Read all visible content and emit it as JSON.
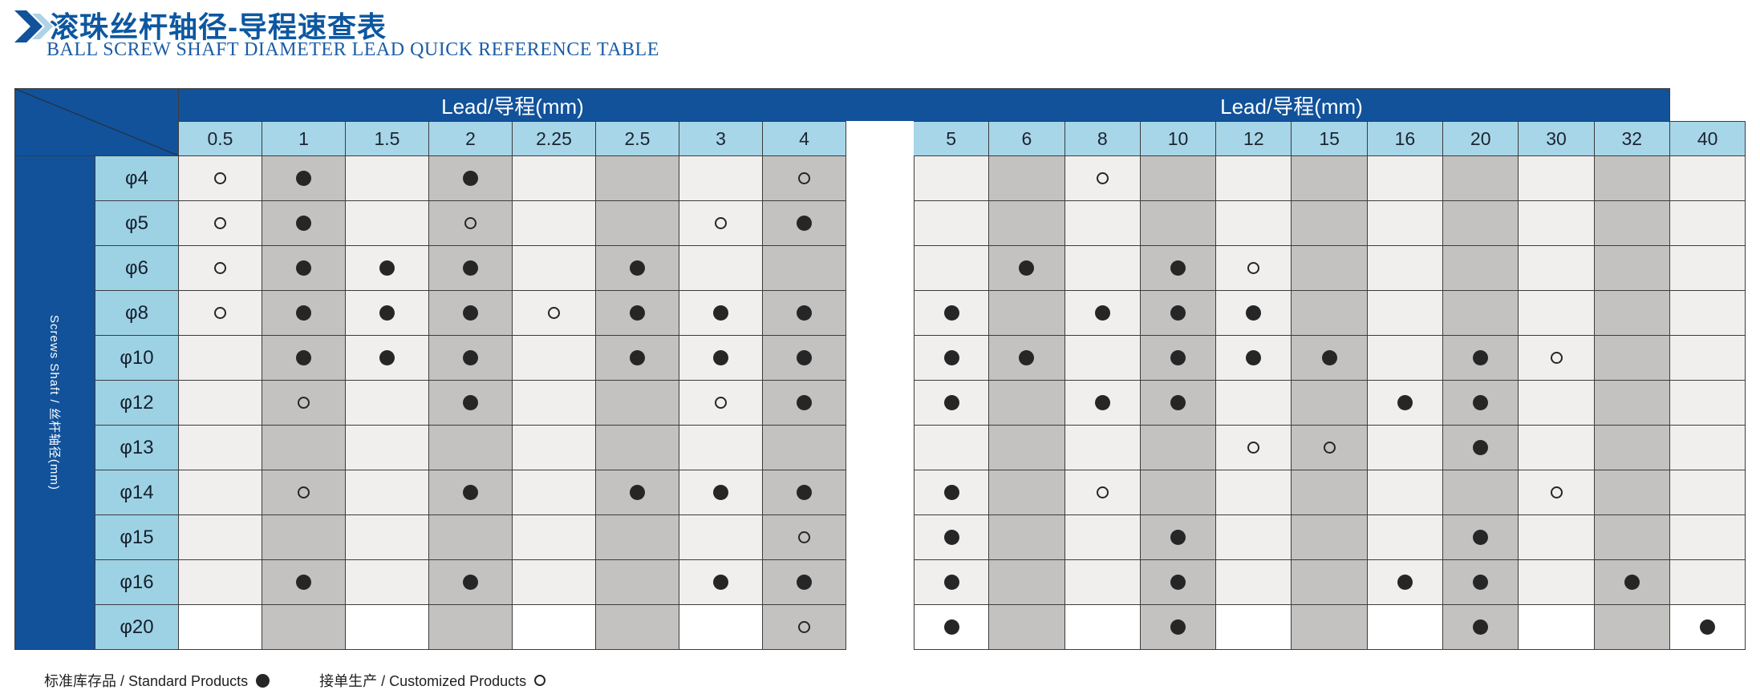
{
  "page": {
    "title_cn": "滚珠丝杆轴径-导程速查表",
    "title_en": "BALL SCREW SHAFT DIAMETER LEAD QUICK REFERENCE TABLE"
  },
  "table": {
    "header_label": "Lead/导程(mm)",
    "row_axis_label": "Screws Shaft / 丝杆轴径(mm)",
    "left_columns": [
      "0.5",
      "1",
      "1.5",
      "2",
      "2.25",
      "2.5",
      "3",
      "4"
    ],
    "right_columns": [
      "5",
      "6",
      "8",
      "10",
      "12",
      "15",
      "16",
      "20",
      "30",
      "32",
      "40"
    ],
    "symbol_key": {
      "S": "standard ●",
      "C": "customized ○",
      "": "not available"
    },
    "rows": [
      {
        "label": "φ4",
        "left": [
          "C",
          "S",
          "",
          "S",
          "",
          "",
          "",
          "C"
        ],
        "right": [
          "",
          "",
          "C",
          "",
          "",
          "",
          "",
          "",
          "",
          "",
          ""
        ]
      },
      {
        "label": "φ5",
        "left": [
          "C",
          "S",
          "",
          "C",
          "",
          "",
          "C",
          "S"
        ],
        "right": [
          "",
          "",
          "",
          "",
          "",
          "",
          "",
          "",
          "",
          "",
          ""
        ]
      },
      {
        "label": "φ6",
        "left": [
          "C",
          "S",
          "S",
          "S",
          "",
          "S",
          "",
          ""
        ],
        "right": [
          "",
          "S",
          "",
          "S",
          "C",
          "",
          "",
          "",
          "",
          "",
          ""
        ]
      },
      {
        "label": "φ8",
        "left": [
          "C",
          "S",
          "S",
          "S",
          "C",
          "S",
          "S",
          "S"
        ],
        "right": [
          "S",
          "",
          "S",
          "S",
          "S",
          "",
          "",
          "",
          "",
          "",
          ""
        ]
      },
      {
        "label": "φ10",
        "left": [
          "",
          "S",
          "S",
          "S",
          "",
          "S",
          "S",
          "S"
        ],
        "right": [
          "S",
          "S",
          "",
          "S",
          "S",
          "S",
          "",
          "S",
          "C",
          "",
          ""
        ]
      },
      {
        "label": "φ12",
        "left": [
          "",
          "C",
          "",
          "S",
          "",
          "",
          "C",
          "S"
        ],
        "right": [
          "S",
          "",
          "S",
          "S",
          "",
          "",
          "S",
          "S",
          "",
          "",
          ""
        ]
      },
      {
        "label": "φ13",
        "left": [
          "",
          "",
          "",
          "",
          "",
          "",
          "",
          ""
        ],
        "right": [
          "",
          "",
          "",
          "",
          "C",
          "C",
          "",
          "S",
          "",
          "",
          ""
        ]
      },
      {
        "label": "φ14",
        "left": [
          "",
          "C",
          "",
          "S",
          "",
          "S",
          "S",
          "S"
        ],
        "right": [
          "S",
          "",
          "C",
          "",
          "",
          "",
          "",
          "",
          "C",
          "",
          ""
        ]
      },
      {
        "label": "φ15",
        "left": [
          "",
          "",
          "",
          "",
          "",
          "",
          "",
          "C"
        ],
        "right": [
          "S",
          "",
          "",
          "S",
          "",
          "",
          "",
          "S",
          "",
          "",
          ""
        ]
      },
      {
        "label": "φ16",
        "left": [
          "",
          "S",
          "",
          "S",
          "",
          "",
          "S",
          "S"
        ],
        "right": [
          "S",
          "",
          "",
          "S",
          "",
          "",
          "S",
          "S",
          "",
          "S",
          ""
        ]
      },
      {
        "label": "φ20",
        "left": [
          "",
          "",
          "",
          "",
          "",
          "",
          "",
          "C"
        ],
        "right": [
          "S",
          "",
          "",
          "S",
          "",
          "",
          "",
          "S",
          "",
          "",
          "S"
        ]
      }
    ]
  },
  "legend": {
    "standard_label": "标准库存品 / Standard Products",
    "standard_symbol": "●",
    "customized_label": "接单生产 / Customized Products",
    "customized_symbol": "○"
  },
  "colors": {
    "dark_blue": "#11529B",
    "column_header_blue": "#A7D6E8",
    "row_header_blue": "#9DD2E5",
    "cell_light": "#F0EFED",
    "cell_dark": "#C3C2C0",
    "cell_last_row_light": "#FFFFFF",
    "border": "#3C3C3C",
    "dot": "#262626",
    "title_blue": "#0D57A0"
  }
}
